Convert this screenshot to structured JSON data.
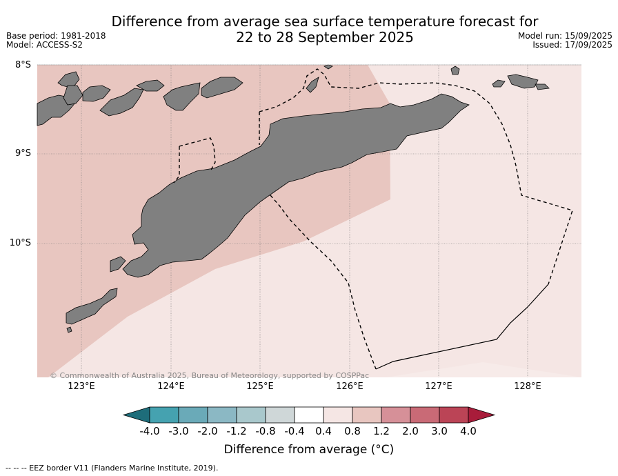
{
  "title_line1": "Difference from average sea surface temperature forecast for",
  "title_line2": "22 to 28 September 2025",
  "base_period": "Base period: 1981-2018",
  "model": "Model: ACCESS-S2",
  "model_run": "Model run: 15/09/2025",
  "issued": "Issued: 17/09/2025",
  "lat_labels": [
    "8°S",
    "9°S",
    "10°S"
  ],
  "lon_labels": [
    "123°E",
    "124°E",
    "125°E",
    "126°E",
    "127°E",
    "128°E"
  ],
  "copyright": "© Commonwealth of Australia 2025, Bureau of Meteorology, supported by COSPPac",
  "colorbar": {
    "ticks": [
      "-4.0",
      "-3.0",
      "-2.0",
      "-1.2",
      "-0.8",
      "-0.4",
      "0.4",
      "0.8",
      "1.2",
      "2.0",
      "3.0",
      "4.0"
    ],
    "colors": [
      "#1e6d7a",
      "#45a2b0",
      "#6aaab8",
      "#8bb8c4",
      "#a9c8cc",
      "#cfd7d8",
      "#ffffff",
      "#f5e6e4",
      "#e8c6c0",
      "#d69098",
      "#c96a76",
      "#bb4456",
      "#a81c3a"
    ],
    "label": "Difference from average (°C)"
  },
  "colors": {
    "anomaly_04_08": "#f5e6e4",
    "anomaly_08_12": "#e8c6c0",
    "land": "#808080"
  },
  "footer_legend": "--  --  -- EEZ border V11 (Flanders Marine Institute, 2019)."
}
